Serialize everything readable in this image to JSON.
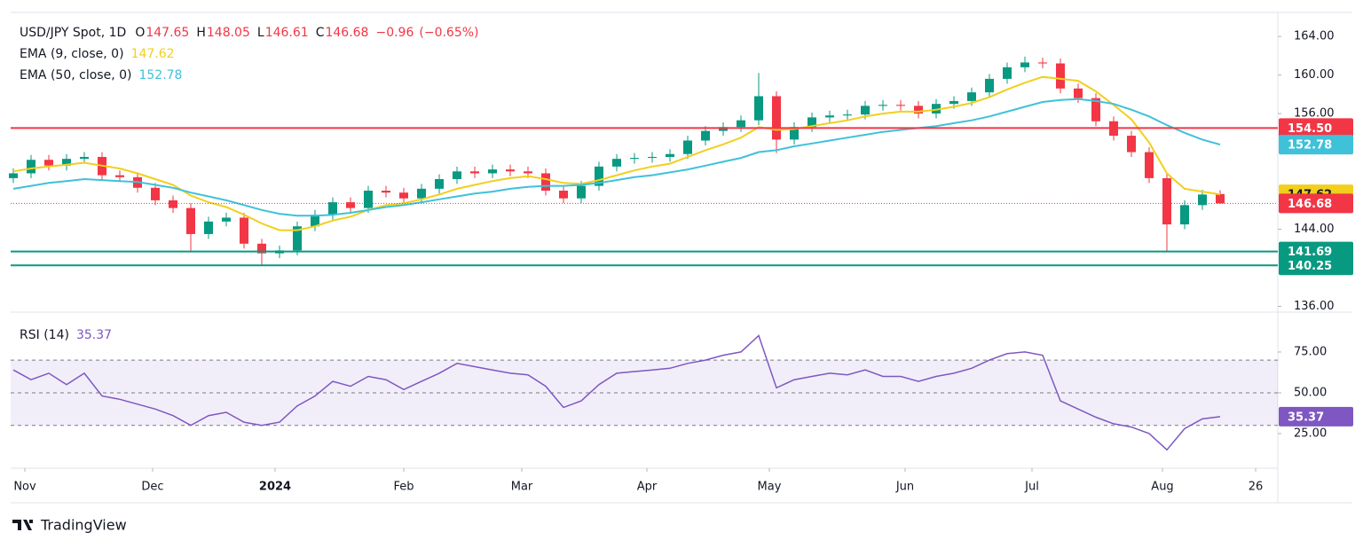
{
  "header": {
    "symbol": "USD/JPY Spot, 1D",
    "ohlc_prefixes": [
      "O",
      "H",
      "L",
      "C"
    ],
    "change": "−0.96",
    "change_pct": "(−0.65%)",
    "logo": "TradingView"
  },
  "chart_data": [
    {
      "type": "candlestick",
      "color_up": "#089981",
      "color_down": "#f23645",
      "open": [
        149.3,
        149.8,
        151.2,
        150.6,
        151.3,
        151.5,
        149.6,
        149.4,
        148.3,
        147.0,
        146.2,
        143.5,
        144.8,
        145.2,
        142.5,
        141.5,
        141.8,
        144.3,
        145.5,
        146.8,
        146.2,
        148.0,
        147.8,
        147.2,
        148.2,
        149.2,
        150.0,
        149.8,
        150.2,
        150.0,
        149.8,
        148.0,
        147.2,
        148.5,
        150.5,
        151.3,
        151.4,
        151.5,
        151.8,
        153.2,
        154.2,
        154.6,
        155.3,
        157.8,
        153.3,
        154.6,
        155.6,
        155.8,
        155.9,
        156.8,
        156.9,
        156.8,
        156.0,
        157.0,
        157.3,
        158.2,
        159.6,
        160.8,
        161.3,
        161.2,
        158.6,
        157.6,
        155.2,
        153.7,
        152.0,
        149.3,
        144.5,
        146.5,
        147.65
      ],
      "high": [
        150.3,
        151.7,
        151.7,
        151.8,
        152.0,
        152.0,
        150.1,
        149.9,
        148.8,
        147.5,
        146.7,
        145.3,
        145.7,
        145.7,
        143.0,
        142.3,
        144.8,
        146.0,
        147.3,
        147.3,
        148.5,
        148.5,
        148.3,
        148.7,
        149.7,
        150.5,
        150.5,
        150.7,
        150.7,
        150.5,
        150.3,
        148.5,
        149.0,
        151.0,
        151.8,
        151.9,
        152.0,
        152.3,
        153.7,
        154.7,
        155.1,
        155.8,
        160.2,
        158.3,
        155.1,
        156.1,
        156.3,
        156.4,
        157.3,
        157.4,
        157.4,
        157.3,
        157.5,
        157.8,
        158.7,
        160.1,
        161.3,
        161.9,
        161.8,
        161.7,
        159.1,
        158.1,
        155.7,
        154.2,
        152.5,
        149.8,
        147.0,
        148.1,
        148.05
      ],
      "low": [
        148.8,
        149.3,
        150.1,
        150.1,
        150.8,
        149.1,
        148.9,
        147.8,
        146.5,
        145.7,
        141.6,
        143.0,
        144.3,
        142.0,
        140.25,
        141.0,
        141.3,
        143.8,
        145.0,
        145.7,
        145.7,
        147.3,
        146.7,
        146.7,
        147.7,
        148.7,
        149.3,
        149.3,
        149.5,
        149.3,
        147.5,
        146.7,
        146.7,
        148.0,
        150.0,
        150.8,
        150.9,
        151.0,
        151.3,
        152.7,
        153.7,
        154.1,
        154.8,
        151.9,
        152.8,
        154.1,
        155.1,
        155.3,
        155.4,
        156.3,
        156.3,
        155.5,
        155.5,
        156.5,
        156.8,
        157.7,
        159.1,
        160.3,
        160.7,
        158.1,
        157.1,
        154.7,
        153.2,
        151.5,
        148.8,
        141.69,
        144.0,
        146.0,
        146.61
      ],
      "close": [
        149.8,
        151.2,
        150.6,
        151.3,
        151.5,
        149.6,
        149.4,
        148.3,
        147.0,
        146.2,
        143.5,
        144.8,
        145.2,
        142.5,
        141.5,
        141.8,
        144.3,
        145.5,
        146.8,
        146.2,
        148.0,
        147.8,
        147.2,
        148.2,
        149.2,
        150.0,
        149.8,
        150.2,
        150.0,
        149.8,
        148.0,
        147.2,
        148.5,
        150.5,
        151.3,
        151.4,
        151.5,
        151.8,
        153.2,
        154.2,
        154.6,
        155.3,
        157.8,
        153.3,
        154.6,
        155.6,
        155.8,
        155.9,
        156.8,
        156.9,
        156.8,
        156.0,
        157.0,
        157.3,
        158.2,
        159.6,
        160.8,
        161.3,
        161.2,
        158.6,
        157.6,
        155.2,
        153.7,
        152.0,
        149.3,
        144.5,
        146.5,
        147.6,
        146.68
      ],
      "series": [
        {
          "name": "EMA (9, close, 0)",
          "color": "#f2cf1d",
          "values": [
            150.0,
            150.3,
            150.5,
            150.7,
            150.9,
            150.6,
            150.3,
            149.8,
            149.2,
            148.6,
            147.5,
            146.8,
            146.3,
            145.5,
            144.6,
            143.9,
            143.9,
            144.3,
            144.9,
            145.3,
            146.0,
            146.5,
            146.7,
            147.1,
            147.6,
            148.2,
            148.6,
            149.0,
            149.3,
            149.5,
            149.2,
            148.8,
            148.7,
            149.1,
            149.6,
            150.1,
            150.5,
            150.8,
            151.5,
            152.2,
            152.8,
            153.5,
            154.6,
            154.3,
            154.4,
            154.7,
            155.0,
            155.3,
            155.7,
            156.0,
            156.2,
            156.2,
            156.4,
            156.7,
            157.1,
            157.7,
            158.5,
            159.2,
            159.8,
            159.6,
            159.4,
            158.3,
            156.9,
            155.4,
            153.0,
            149.8,
            148.2,
            147.9,
            147.62
          ]
        },
        {
          "name": "EMA (50, close, 0)",
          "color": "#3fc1d9",
          "values": [
            148.2,
            148.5,
            148.8,
            149.0,
            149.2,
            149.1,
            149.0,
            148.9,
            148.6,
            148.3,
            147.8,
            147.4,
            147.0,
            146.5,
            146.0,
            145.6,
            145.4,
            145.4,
            145.5,
            145.7,
            146.0,
            146.3,
            146.5,
            146.8,
            147.1,
            147.4,
            147.7,
            147.9,
            148.2,
            148.4,
            148.5,
            148.5,
            148.6,
            148.8,
            149.1,
            149.4,
            149.6,
            149.9,
            150.2,
            150.6,
            151.0,
            151.4,
            152.0,
            152.2,
            152.6,
            152.9,
            153.2,
            153.5,
            153.8,
            154.1,
            154.3,
            154.5,
            154.7,
            155.0,
            155.3,
            155.7,
            156.2,
            156.7,
            157.2,
            157.4,
            157.5,
            157.3,
            157.0,
            156.4,
            155.7,
            154.8,
            154.0,
            153.3,
            152.78
          ]
        }
      ],
      "levels": [
        {
          "value": 154.5,
          "label": "154.50",
          "color": "#f23645"
        },
        {
          "value": 141.69,
          "label": "141.69",
          "color": "#089981"
        },
        {
          "value": 140.25,
          "label": "140.25",
          "color": "#089981"
        }
      ],
      "ylim": [
        135.4,
        166.4
      ],
      "yticks": [
        {
          "value": 136,
          "label": "136.00"
        },
        {
          "value": 144,
          "label": "144.00"
        },
        {
          "value": 156,
          "label": "156.00"
        },
        {
          "value": 160,
          "label": "160.00"
        },
        {
          "value": 164,
          "label": "164.00"
        }
      ],
      "xlim": [
        -0.15,
        71.25
      ]
    },
    {
      "type": "line",
      "name": "RSI (14)",
      "series": [
        {
          "name": "RSI (14)",
          "color": "#7e57c2",
          "values": [
            64,
            58,
            62,
            55,
            62,
            48,
            46,
            43,
            40,
            36,
            30,
            36,
            38,
            32,
            30,
            32,
            42,
            48,
            57,
            54,
            60,
            58,
            52,
            57,
            62,
            68,
            66,
            64,
            62,
            61,
            54,
            41,
            45,
            55,
            62,
            63,
            64,
            65,
            68,
            70,
            73,
            75,
            85,
            53,
            58,
            60,
            62,
            61,
            64,
            60,
            60,
            57,
            60,
            62,
            65,
            70,
            74,
            75,
            73,
            45,
            40,
            35,
            31,
            29,
            25,
            15,
            28,
            34,
            35.37
          ]
        }
      ],
      "levels": [
        30,
        50,
        70
      ],
      "ylim": [
        5.4,
        97.8
      ],
      "yticks": [
        {
          "value": 25,
          "label": "25.00"
        },
        {
          "value": 50,
          "label": "50.00"
        },
        {
          "value": 75,
          "label": "75.00"
        }
      ],
      "xlim": [
        -0.15,
        71.25
      ],
      "xticks": [
        {
          "value": 0.65,
          "label": "Nov"
        },
        {
          "value": 7.85,
          "label": "Dec"
        },
        {
          "value": 14.75,
          "label": "2024"
        },
        {
          "value": 22,
          "label": "Feb"
        },
        {
          "value": 28.65,
          "label": "Mar"
        },
        {
          "value": 35.7,
          "label": "Apr"
        },
        {
          "value": 42.6,
          "label": "May"
        },
        {
          "value": 50.25,
          "label": "Jun"
        },
        {
          "value": 57.4,
          "label": "Jul"
        },
        {
          "value": 64.75,
          "label": "Aug"
        },
        {
          "value": 70,
          "label": "26"
        }
      ]
    }
  ]
}
